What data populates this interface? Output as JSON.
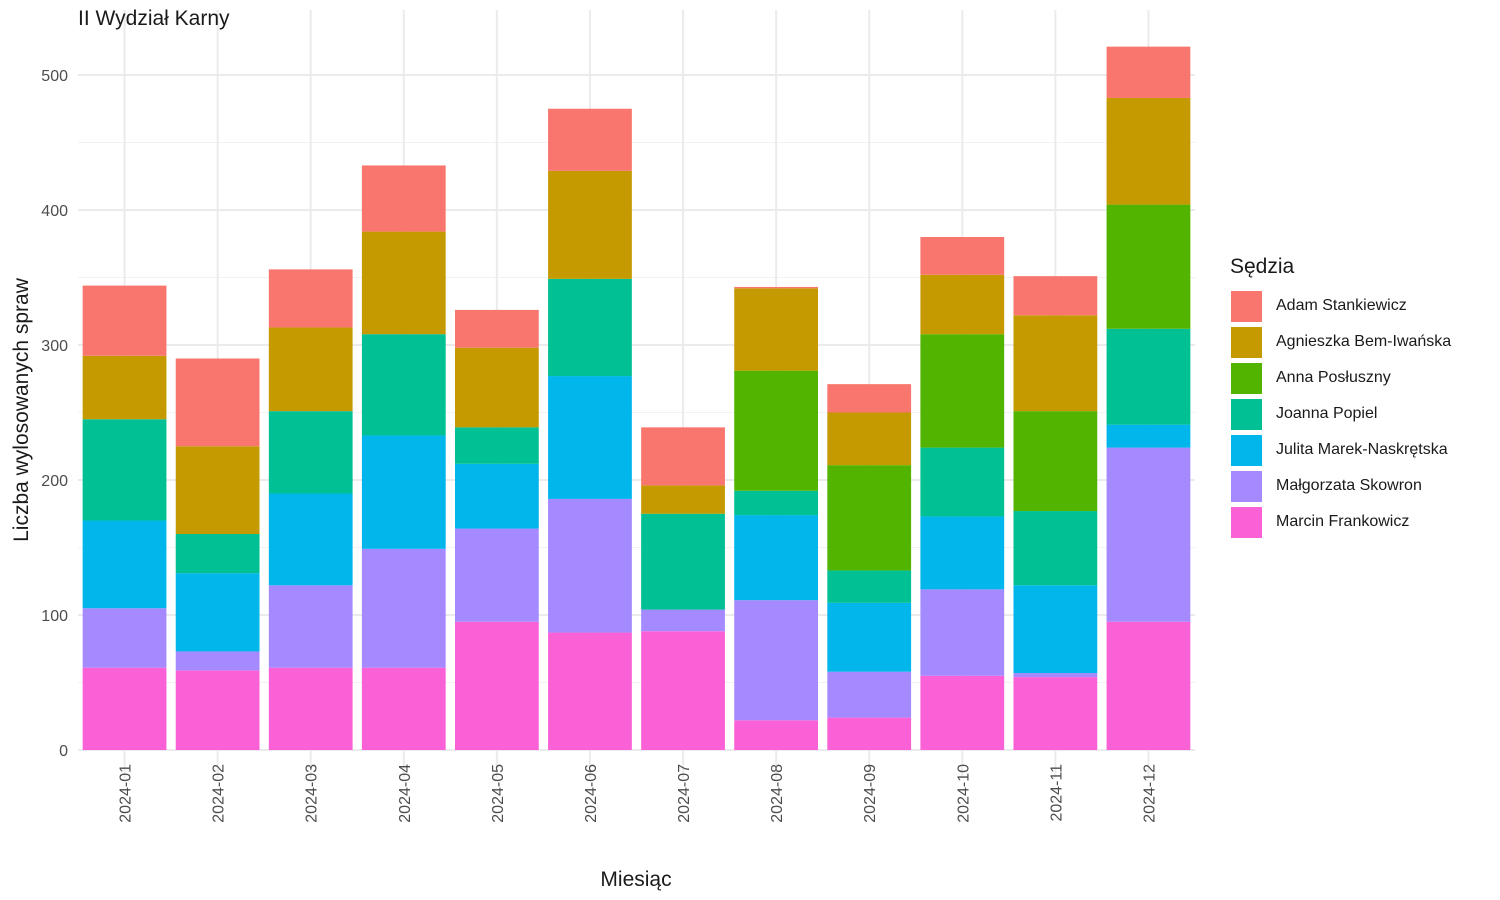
{
  "chart_data": {
    "type": "bar",
    "stacked": true,
    "title": "II Wydział Karny",
    "xlabel": "Miesiąc",
    "ylabel": "Liczba wylosowanych spraw",
    "ylim": [
      0,
      530
    ],
    "yticks": [
      0,
      100,
      200,
      300,
      400,
      500
    ],
    "grid": true,
    "legend_title": "Sędzia",
    "legend_position": "right",
    "categories": [
      "2024-01",
      "2024-02",
      "2024-03",
      "2024-04",
      "2024-05",
      "2024-06",
      "2024-07",
      "2024-08",
      "2024-09",
      "2024-10",
      "2024-11",
      "2024-12"
    ],
    "series": [
      {
        "name": "Marcin Frankowicz",
        "color": "#FB61D7",
        "values": [
          61,
          59,
          61,
          61,
          95,
          87,
          88,
          22,
          24,
          55,
          54,
          95
        ]
      },
      {
        "name": "Małgorzata Skowron",
        "color": "#A58AFF",
        "values": [
          44,
          14,
          61,
          88,
          69,
          99,
          16,
          89,
          34,
          64,
          3,
          129
        ]
      },
      {
        "name": "Julita Marek-Naskrętska",
        "color": "#00B6EB",
        "values": [
          65,
          58,
          68,
          84,
          48,
          91,
          0,
          63,
          51,
          54,
          65,
          17
        ]
      },
      {
        "name": "Joanna Popiel",
        "color": "#00C094",
        "values": [
          75,
          29,
          61,
          75,
          27,
          72,
          71,
          18,
          24,
          51,
          55,
          71
        ]
      },
      {
        "name": "Anna Posłuszny",
        "color": "#53B400",
        "values": [
          0,
          0,
          0,
          0,
          0,
          0,
          0,
          89,
          78,
          84,
          74,
          92
        ]
      },
      {
        "name": "Agnieszka Bem-Iwańska",
        "color": "#C49A00",
        "values": [
          47,
          65,
          62,
          76,
          59,
          80,
          21,
          61,
          39,
          44,
          71,
          79
        ]
      },
      {
        "name": "Adam Stankiewicz",
        "color": "#F8766D",
        "values": [
          52,
          65,
          43,
          49,
          28,
          46,
          43,
          1,
          21,
          28,
          29,
          38
        ]
      }
    ],
    "legend_order": [
      "Adam Stankiewicz",
      "Agnieszka Bem-Iwańska",
      "Anna Posłuszny",
      "Joanna Popiel",
      "Julita Marek-Naskrętska",
      "Małgorzata Skowron",
      "Marcin Frankowicz"
    ]
  }
}
